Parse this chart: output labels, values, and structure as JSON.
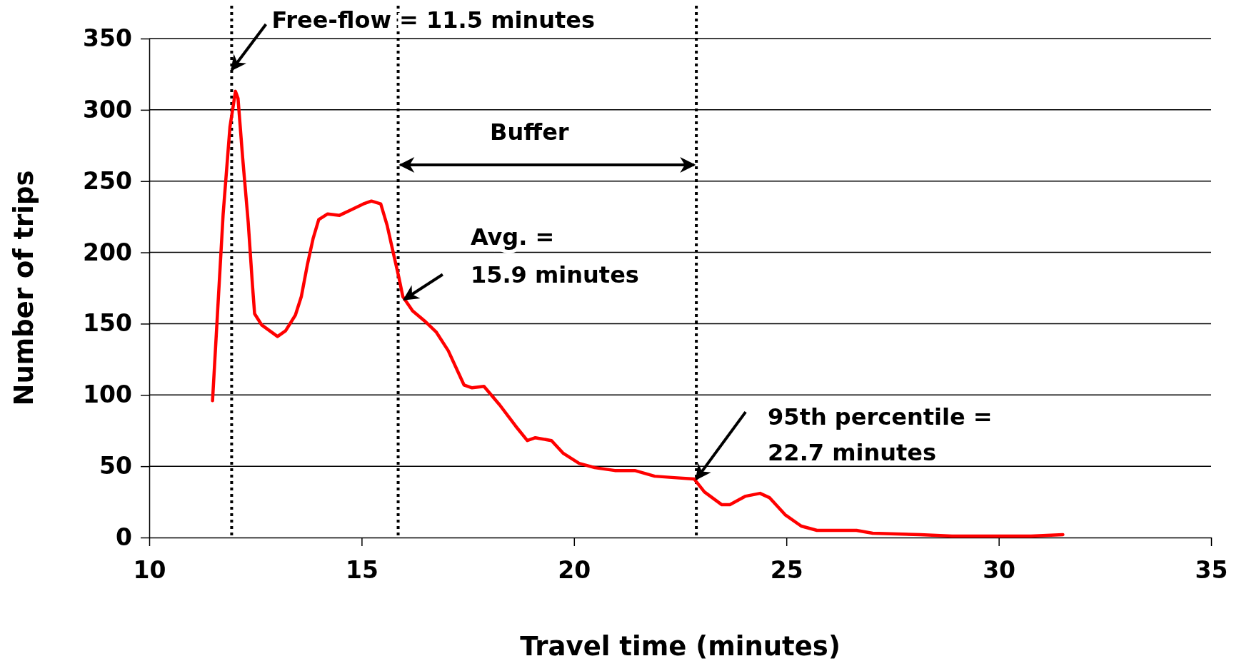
{
  "chart_data": {
    "type": "line",
    "xlabel": "Travel time (minutes)",
    "ylabel": "Number of trips",
    "xlim": [
      10,
      35
    ],
    "xticks": [
      10,
      15,
      20,
      25,
      30,
      35
    ],
    "ylim": [
      0,
      350
    ],
    "yticks": [
      0,
      50,
      100,
      150,
      200,
      250,
      300,
      350
    ],
    "grid": "y",
    "marker": "none",
    "line_style": "solid",
    "series": [
      {
        "color": "#ff0000",
        "x": [
          11.49,
          11.74,
          11.9,
          12.03,
          12.09,
          12.2,
          12.33,
          12.43,
          12.48,
          12.65,
          13.02,
          13.21,
          13.44,
          13.58,
          13.72,
          13.86,
          13.99,
          14.2,
          14.48,
          14.76,
          15.04,
          15.23,
          15.45,
          15.6,
          15.75,
          15.88,
          15.97,
          16.2,
          16.48,
          16.76,
          17.04,
          17.41,
          17.6,
          17.88,
          18.25,
          18.63,
          18.9,
          19.09,
          19.47,
          19.75,
          20.12,
          20.49,
          20.96,
          21.43,
          21.9,
          22.36,
          22.83,
          23.07,
          23.48,
          23.67,
          24.04,
          24.38,
          24.6,
          24.97,
          25.35,
          25.72,
          26.65,
          27.03,
          28.15,
          28.9,
          30.76,
          31.51
        ],
        "values": [
          96,
          227,
          288,
          313,
          308,
          266,
          221,
          177,
          157,
          149,
          141,
          145,
          156,
          169,
          191,
          210,
          223,
          227,
          226,
          230,
          234,
          236,
          234,
          219,
          199,
          182,
          169,
          159,
          152,
          144,
          131,
          107,
          105,
          106,
          93,
          78,
          68,
          70,
          68,
          59,
          52,
          49,
          47,
          47,
          43,
          42,
          41,
          32,
          23,
          23,
          29,
          31,
          28,
          16,
          8,
          5,
          5,
          3,
          2,
          1,
          1,
          2
        ]
      }
    ],
    "ref_lines": [
      {
        "axis": "x",
        "value": 11.94,
        "color": "#000000",
        "line_style": "dotted"
      },
      {
        "axis": "x",
        "value": 15.86,
        "color": "#000000",
        "line_style": "dotted"
      },
      {
        "axis": "x",
        "value": 22.88,
        "color": "#000000",
        "line_style": "dotted"
      }
    ],
    "annotations": [
      {
        "text": "Free-flow = 11.5 minutes",
        "x": 11.94,
        "y": 328
      },
      {
        "text": "Avg. =\n15.9 minutes",
        "x": 16.0,
        "y": 167
      },
      {
        "text": "95th percentile =\n22.7 minutes",
        "x": 22.88,
        "y": 41
      },
      "Buffer"
    ]
  }
}
